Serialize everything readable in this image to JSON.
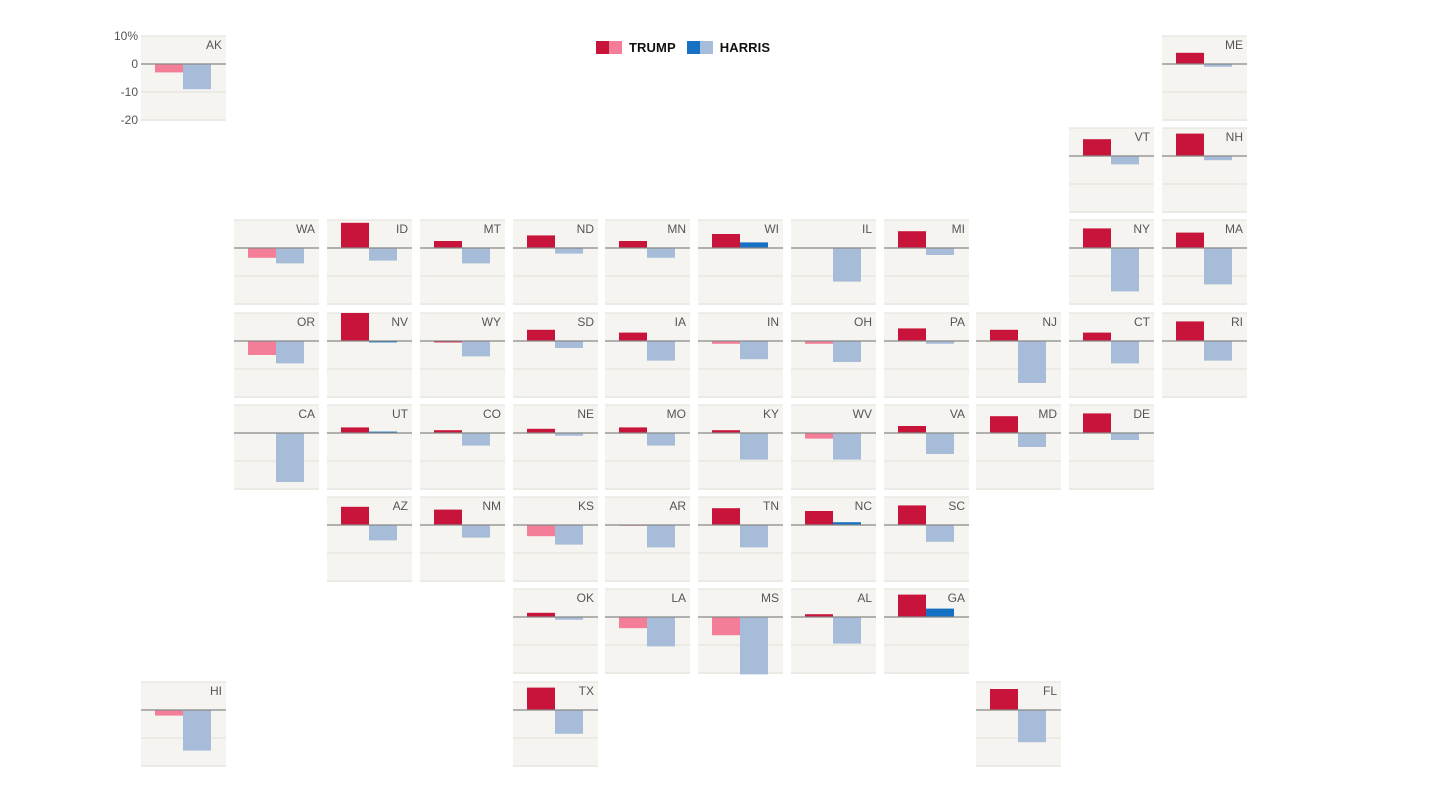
{
  "legend": {
    "trump_label": "TRUMP",
    "harris_label": "HARRIS"
  },
  "colors": {
    "trump_strong": "#c8143b",
    "trump_light": "#f47e97",
    "harris_strong": "#1670c3",
    "harris_light": "#a7bcd9",
    "panel_bg": "#f5f4f0",
    "grid": "#e1dfd9",
    "zero_line": "#888888",
    "text": "#555555"
  },
  "chart_data": {
    "type": "bar",
    "description_axis": "percent change by candidate per state, tile-grid map",
    "y_tick_labels": [
      "10%",
      "0",
      "-10",
      "-20"
    ],
    "y_ticks": [
      10,
      0,
      -10,
      -20
    ],
    "ylim": [
      -20,
      10
    ],
    "series": [
      {
        "name": "TRUMP"
      },
      {
        "name": "HARRIS"
      }
    ],
    "states": [
      {
        "state": "AK",
        "trump": -3.0,
        "harris": -9.0,
        "trump_strong": false,
        "harris_strong": false
      },
      {
        "state": "ME",
        "trump": 4.0,
        "harris": -1.0,
        "trump_strong": true,
        "harris_strong": false
      },
      {
        "state": "VT",
        "trump": 6.0,
        "harris": -3.0,
        "trump_strong": true,
        "harris_strong": false
      },
      {
        "state": "NH",
        "trump": 8.0,
        "harris": -1.5,
        "trump_strong": true,
        "harris_strong": false
      },
      {
        "state": "WA",
        "trump": -3.5,
        "harris": -5.5,
        "trump_strong": false,
        "harris_strong": false
      },
      {
        "state": "ID",
        "trump": 9.0,
        "harris": -4.5,
        "trump_strong": true,
        "harris_strong": false
      },
      {
        "state": "MT",
        "trump": 2.5,
        "harris": -5.5,
        "trump_strong": true,
        "harris_strong": false
      },
      {
        "state": "ND",
        "trump": 4.5,
        "harris": -2.0,
        "trump_strong": true,
        "harris_strong": false
      },
      {
        "state": "MN",
        "trump": 2.5,
        "harris": -3.5,
        "trump_strong": true,
        "harris_strong": false
      },
      {
        "state": "WI",
        "trump": 5.0,
        "harris": 2.0,
        "trump_strong": true,
        "harris_strong": true
      },
      {
        "state": "IL",
        "trump": 0.0,
        "harris": -12.0,
        "trump_strong": true,
        "harris_strong": false
      },
      {
        "state": "MI",
        "trump": 6.0,
        "harris": -2.5,
        "trump_strong": true,
        "harris_strong": false
      },
      {
        "state": "NY",
        "trump": 7.0,
        "harris": -15.5,
        "trump_strong": true,
        "harris_strong": false
      },
      {
        "state": "MA",
        "trump": 5.5,
        "harris": -13.0,
        "trump_strong": true,
        "harris_strong": false
      },
      {
        "state": "OR",
        "trump": -5.0,
        "harris": -8.0,
        "trump_strong": false,
        "harris_strong": false
      },
      {
        "state": "NV",
        "trump": 10.0,
        "harris": -0.5,
        "trump_strong": true,
        "harris_strong": true
      },
      {
        "state": "WY",
        "trump": -0.5,
        "harris": -5.5,
        "trump_strong": true,
        "harris_strong": false
      },
      {
        "state": "SD",
        "trump": 4.0,
        "harris": -2.5,
        "trump_strong": true,
        "harris_strong": false
      },
      {
        "state": "IA",
        "trump": 3.0,
        "harris": -7.0,
        "trump_strong": true,
        "harris_strong": false
      },
      {
        "state": "IN",
        "trump": -1.0,
        "harris": -6.5,
        "trump_strong": false,
        "harris_strong": false
      },
      {
        "state": "OH",
        "trump": -1.0,
        "harris": -7.5,
        "trump_strong": false,
        "harris_strong": false
      },
      {
        "state": "PA",
        "trump": 4.5,
        "harris": -1.0,
        "trump_strong": true,
        "harris_strong": false
      },
      {
        "state": "NJ",
        "trump": 4.0,
        "harris": -15.0,
        "trump_strong": true,
        "harris_strong": false
      },
      {
        "state": "CT",
        "trump": 3.0,
        "harris": -8.0,
        "trump_strong": true,
        "harris_strong": false
      },
      {
        "state": "RI",
        "trump": 7.0,
        "harris": -7.0,
        "trump_strong": true,
        "harris_strong": false
      },
      {
        "state": "CA",
        "trump": 0.0,
        "harris": -17.5,
        "trump_strong": true,
        "harris_strong": false
      },
      {
        "state": "UT",
        "trump": 2.0,
        "harris": 0.5,
        "trump_strong": true,
        "harris_strong": true
      },
      {
        "state": "CO",
        "trump": 1.0,
        "harris": -4.5,
        "trump_strong": true,
        "harris_strong": false
      },
      {
        "state": "NE",
        "trump": 1.5,
        "harris": -1.0,
        "trump_strong": true,
        "harris_strong": false
      },
      {
        "state": "MO",
        "trump": 2.0,
        "harris": -4.5,
        "trump_strong": true,
        "harris_strong": false
      },
      {
        "state": "KY",
        "trump": 1.0,
        "harris": -9.5,
        "trump_strong": true,
        "harris_strong": false
      },
      {
        "state": "WV",
        "trump": -2.0,
        "harris": -9.5,
        "trump_strong": false,
        "harris_strong": false
      },
      {
        "state": "VA",
        "trump": 2.5,
        "harris": -7.5,
        "trump_strong": true,
        "harris_strong": false
      },
      {
        "state": "MD",
        "trump": 6.0,
        "harris": -5.0,
        "trump_strong": true,
        "harris_strong": false
      },
      {
        "state": "DE",
        "trump": 7.0,
        "harris": -2.5,
        "trump_strong": true,
        "harris_strong": false
      },
      {
        "state": "AZ",
        "trump": 6.5,
        "harris": -5.5,
        "trump_strong": true,
        "harris_strong": false
      },
      {
        "state": "NM",
        "trump": 5.5,
        "harris": -4.5,
        "trump_strong": true,
        "harris_strong": false
      },
      {
        "state": "KS",
        "trump": -4.0,
        "harris": -7.0,
        "trump_strong": false,
        "harris_strong": false
      },
      {
        "state": "AR",
        "trump": -0.3,
        "harris": -8.0,
        "trump_strong": false,
        "harris_strong": false
      },
      {
        "state": "TN",
        "trump": 6.0,
        "harris": -8.0,
        "trump_strong": true,
        "harris_strong": false
      },
      {
        "state": "NC",
        "trump": 5.0,
        "harris": 1.0,
        "trump_strong": true,
        "harris_strong": true
      },
      {
        "state": "SC",
        "trump": 7.0,
        "harris": -6.0,
        "trump_strong": true,
        "harris_strong": false
      },
      {
        "state": "OK",
        "trump": 1.5,
        "harris": -1.0,
        "trump_strong": true,
        "harris_strong": false
      },
      {
        "state": "LA",
        "trump": -4.0,
        "harris": -10.5,
        "trump_strong": false,
        "harris_strong": false
      },
      {
        "state": "MS",
        "trump": -6.5,
        "harris": -20.5,
        "trump_strong": false,
        "harris_strong": false
      },
      {
        "state": "AL",
        "trump": 1.0,
        "harris": -9.5,
        "trump_strong": true,
        "harris_strong": false
      },
      {
        "state": "GA",
        "trump": 8.0,
        "harris": 3.0,
        "trump_strong": true,
        "harris_strong": true
      },
      {
        "state": "HI",
        "trump": -2.0,
        "harris": -14.5,
        "trump_strong": false,
        "harris_strong": false
      },
      {
        "state": "TX",
        "trump": 8.0,
        "harris": -8.5,
        "trump_strong": true,
        "harris_strong": false
      },
      {
        "state": "FL",
        "trump": 7.5,
        "harris": -11.5,
        "trump_strong": true,
        "harris_strong": false
      }
    ]
  }
}
